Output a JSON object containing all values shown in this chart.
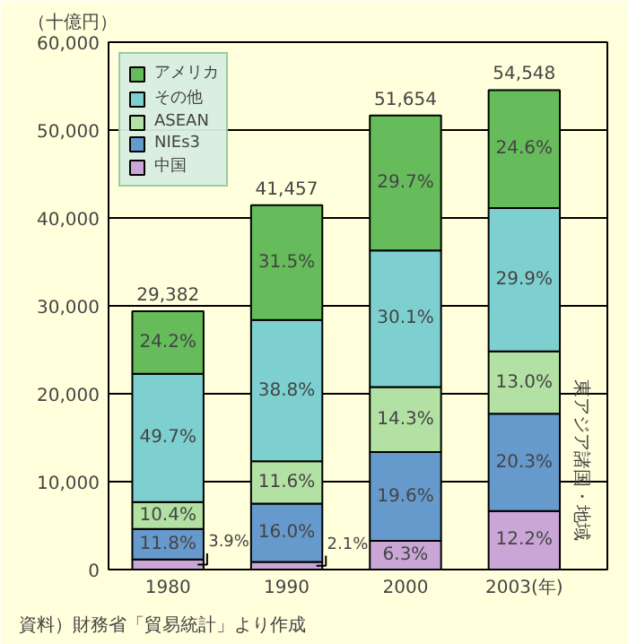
{
  "chart_data": {
    "type": "bar",
    "stacked": true,
    "ylabel": "（十億円）",
    "categories": [
      "1980",
      "1990",
      "2000",
      "2003(年)"
    ],
    "series": [
      {
        "name": "中国",
        "color": "#c9a6d6",
        "values": [
          1146,
          871,
          3254,
          6655
        ]
      },
      {
        "name": "NIEs3",
        "color": "#6699cc",
        "values": [
          3467,
          6633,
          10124,
          11073
        ]
      },
      {
        "name": "ASEAN",
        "color": "#b3e0a3",
        "values": [
          3056,
          4809,
          7387,
          7091
        ]
      },
      {
        "name": "その他",
        "color": "#7ecfcf",
        "values": [
          14603,
          16085,
          15548,
          16310
        ]
      },
      {
        "name": "アメリカ",
        "color": "#66bb5a",
        "values": [
          7110,
          13059,
          15341,
          13419
        ]
      }
    ],
    "totals": [
      "29,382",
      "41,457",
      "51,654",
      "54,548"
    ],
    "ylim": [
      0,
      60000
    ],
    "yticks": [
      {
        "value": 0,
        "label": "0"
      },
      {
        "value": 10000,
        "label": "10,000"
      },
      {
        "value": 20000,
        "label": "20,000"
      },
      {
        "value": 30000,
        "label": "30,000"
      },
      {
        "value": 40000,
        "label": "40,000"
      },
      {
        "value": 50000,
        "label": "50,000"
      },
      {
        "value": 60000,
        "label": "60,000"
      }
    ],
    "grid": "y",
    "legend": "top left",
    "annotations": [
      "3.9%",
      "11.8%",
      "10.4%",
      "49.7%",
      "24.2%",
      "2.1%",
      "16.0%",
      "11.6%",
      "38.8%",
      "31.5%",
      "6.3%",
      "19.6%",
      "14.3%",
      "30.1%",
      "29.7%",
      "12.2%",
      "20.3%",
      "13.0%",
      "29.9%",
      "24.6%",
      "東アジア諸国・地域",
      "資料）財務省「貿易統計」より作成"
    ]
  }
}
